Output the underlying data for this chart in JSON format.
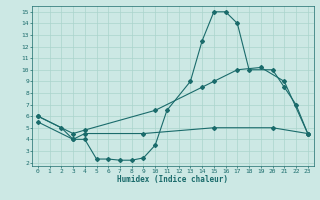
{
  "xlabel": "Humidex (Indice chaleur)",
  "bg_color": "#cce8e4",
  "line_color": "#1a6b6b",
  "grid_color": "#aad4cc",
  "xlim_min": -0.5,
  "xlim_max": 23.5,
  "ylim_min": 1.7,
  "ylim_max": 15.5,
  "xticks": [
    0,
    1,
    2,
    3,
    4,
    5,
    6,
    7,
    8,
    9,
    10,
    11,
    12,
    13,
    14,
    15,
    16,
    17,
    18,
    19,
    20,
    21,
    22,
    23
  ],
  "yticks": [
    2,
    3,
    4,
    5,
    6,
    7,
    8,
    9,
    10,
    11,
    12,
    13,
    14,
    15
  ],
  "line1_x": [
    0,
    2,
    3,
    4,
    5,
    6,
    7,
    8,
    9,
    10,
    11,
    13,
    14,
    15,
    16,
    17,
    18,
    20,
    21,
    22,
    23
  ],
  "line1_y": [
    6,
    5,
    4,
    4,
    2.3,
    2.3,
    2.2,
    2.2,
    2.4,
    3.5,
    6.5,
    9,
    12.5,
    15,
    15,
    14,
    10,
    10,
    8.5,
    7,
    4.5
  ],
  "line2_x": [
    0,
    3,
    4,
    10,
    14,
    15,
    17,
    19,
    21,
    23
  ],
  "line2_y": [
    6,
    4.5,
    4.8,
    6.5,
    8.5,
    9.0,
    10.0,
    10.2,
    9.0,
    4.5
  ],
  "line3_x": [
    0,
    3,
    4,
    9,
    15,
    20,
    23
  ],
  "line3_y": [
    5.5,
    4.0,
    4.5,
    4.5,
    5.0,
    5.0,
    4.5
  ]
}
